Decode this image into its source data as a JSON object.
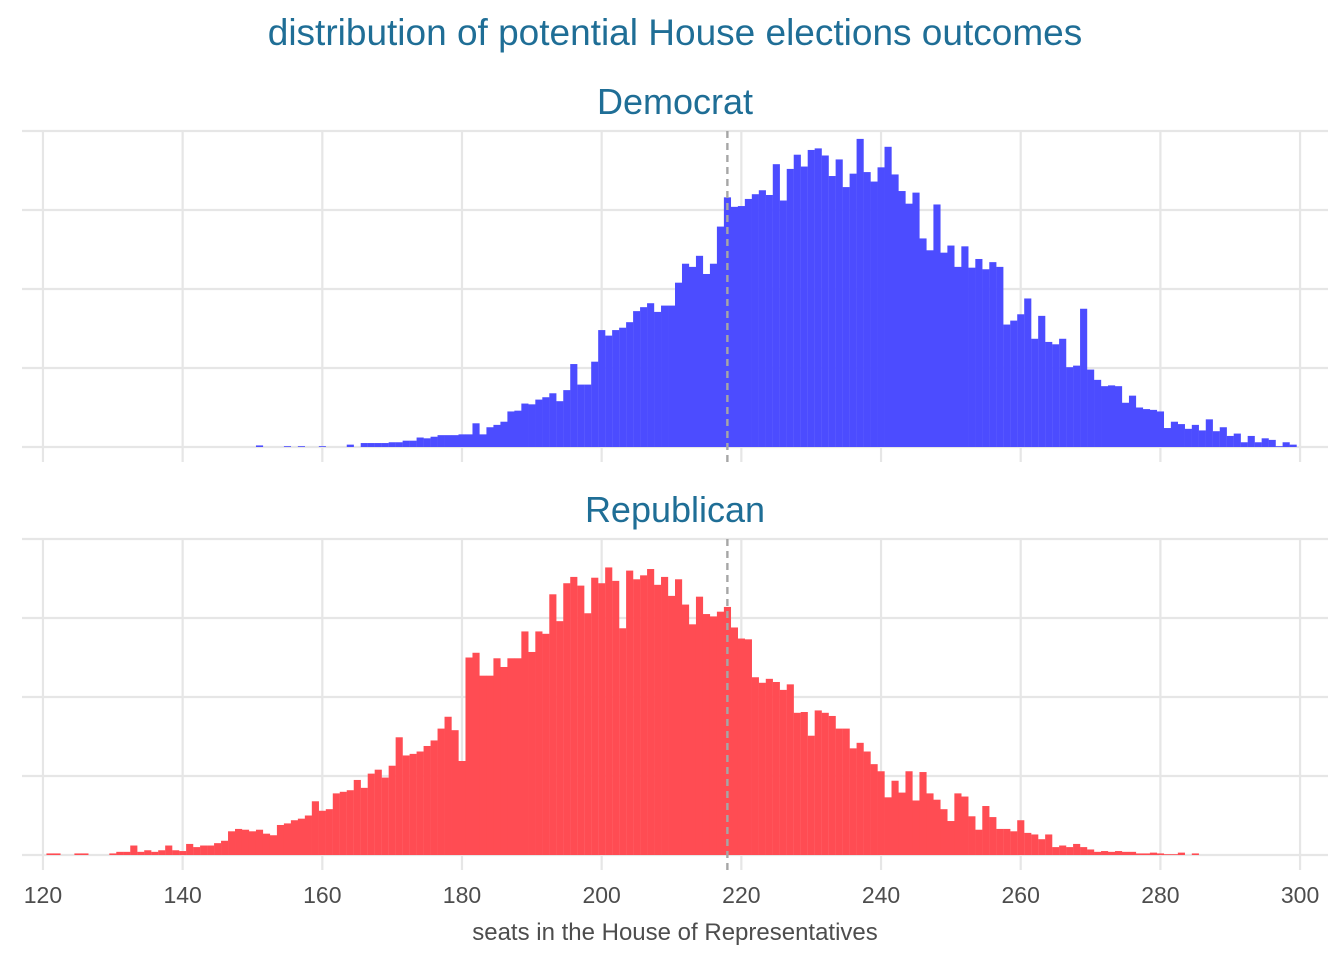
{
  "chart_data": {
    "type": "bar",
    "title": "distribution of potential House elections outcomes",
    "xlabel": "seats in the House of Representatives",
    "ylabel": "",
    "xlim": [
      117,
      304
    ],
    "x_ticks": [
      "120",
      "140",
      "160",
      "180",
      "200",
      "220",
      "240",
      "260",
      "280",
      "300"
    ],
    "reference_line": {
      "x": 218,
      "style": "dashed",
      "color": "#a6a6a6"
    },
    "y_ticks_shown": false,
    "grid": true,
    "legend": "none",
    "panels": [
      {
        "name": "Democrat",
        "color": "#4c4cff",
        "ylim": [
          0,
          4
        ],
        "values": {
          "151": 0.02,
          "155": 0.01,
          "157": 0.01,
          "160": 0.01,
          "164": 0.03,
          "166": 0.05,
          "167": 0.05,
          "168": 0.05,
          "169": 0.05,
          "170": 0.06,
          "171": 0.06,
          "172": 0.08,
          "173": 0.08,
          "174": 0.12,
          "175": 0.11,
          "176": 0.13,
          "177": 0.15,
          "178": 0.15,
          "179": 0.15,
          "180": 0.16,
          "181": 0.16,
          "182": 0.3,
          "183": 0.16,
          "184": 0.25,
          "185": 0.28,
          "186": 0.32,
          "187": 0.45,
          "188": 0.46,
          "189": 0.55,
          "190": 0.54,
          "191": 0.6,
          "192": 0.63,
          "193": 0.68,
          "194": 0.58,
          "195": 0.72,
          "196": 1.05,
          "197": 0.79,
          "198": 0.79,
          "199": 1.08,
          "200": 1.48,
          "201": 1.41,
          "202": 1.48,
          "203": 1.51,
          "204": 1.58,
          "205": 1.72,
          "206": 1.77,
          "207": 1.82,
          "208": 1.71,
          "209": 1.79,
          "210": 1.79,
          "211": 2.08,
          "212": 2.32,
          "213": 2.28,
          "214": 2.42,
          "215": 2.19,
          "216": 2.32,
          "217": 2.79,
          "218": 3.16,
          "219": 3.04,
          "220": 3.05,
          "221": 3.14,
          "222": 3.2,
          "223": 3.25,
          "224": 3.19,
          "225": 3.58,
          "226": 3.12,
          "227": 3.52,
          "228": 3.7,
          "229": 3.55,
          "230": 3.76,
          "231": 3.78,
          "232": 3.69,
          "233": 3.43,
          "234": 3.64,
          "235": 3.29,
          "236": 3.46,
          "237": 3.9,
          "238": 3.48,
          "239": 3.36,
          "240": 3.54,
          "241": 3.8,
          "242": 3.45,
          "243": 3.24,
          "244": 3.08,
          "245": 3.22,
          "246": 2.64,
          "247": 2.49,
          "248": 3.07,
          "249": 2.46,
          "250": 2.55,
          "251": 2.28,
          "252": 2.54,
          "253": 2.27,
          "254": 2.38,
          "255": 2.25,
          "256": 2.34,
          "257": 2.28,
          "258": 1.55,
          "259": 1.6,
          "260": 1.68,
          "261": 1.88,
          "262": 1.37,
          "263": 1.66,
          "264": 1.33,
          "265": 1.3,
          "266": 1.37,
          "267": 1.01,
          "268": 1.03,
          "269": 1.75,
          "270": 0.98,
          "271": 0.85,
          "272": 0.77,
          "273": 0.78,
          "274": 0.77,
          "275": 0.56,
          "276": 0.65,
          "277": 0.5,
          "278": 0.48,
          "279": 0.47,
          "280": 0.45,
          "281": 0.24,
          "282": 0.32,
          "283": 0.29,
          "284": 0.23,
          "285": 0.28,
          "286": 0.21,
          "287": 0.35,
          "288": 0.2,
          "289": 0.25,
          "290": 0.14,
          "291": 0.17,
          "292": 0.06,
          "293": 0.14,
          "294": 0.06,
          "295": 0.11,
          "296": 0.09,
          "297": 0.01,
          "298": 0.06,
          "299": 0.03
        }
      },
      {
        "name": "Republican",
        "color": "#ff4c53",
        "ylim": [
          0,
          4
        ],
        "values": {
          "121": 0.02,
          "122": 0.02,
          "125": 0.02,
          "126": 0.02,
          "130": 0.02,
          "131": 0.04,
          "132": 0.04,
          "133": 0.12,
          "134": 0.04,
          "135": 0.06,
          "136": 0.04,
          "137": 0.06,
          "138": 0.12,
          "139": 0.06,
          "140": 0.05,
          "141": 0.14,
          "142": 0.1,
          "143": 0.12,
          "144": 0.12,
          "145": 0.15,
          "146": 0.18,
          "147": 0.3,
          "148": 0.33,
          "149": 0.32,
          "150": 0.3,
          "151": 0.32,
          "152": 0.27,
          "153": 0.25,
          "154": 0.38,
          "155": 0.4,
          "156": 0.44,
          "157": 0.46,
          "158": 0.5,
          "159": 0.68,
          "160": 0.56,
          "161": 0.58,
          "162": 0.78,
          "163": 0.8,
          "164": 0.82,
          "165": 0.95,
          "166": 0.85,
          "167": 1.03,
          "168": 1.08,
          "169": 0.98,
          "170": 1.13,
          "171": 1.49,
          "172": 1.26,
          "173": 1.28,
          "174": 1.31,
          "175": 1.38,
          "176": 1.45,
          "177": 1.6,
          "178": 1.75,
          "179": 1.58,
          "180": 1.19,
          "181": 2.5,
          "182": 2.56,
          "183": 2.27,
          "184": 2.27,
          "185": 2.49,
          "186": 2.38,
          "187": 2.49,
          "188": 2.49,
          "189": 2.83,
          "190": 2.57,
          "191": 2.83,
          "192": 2.8,
          "193": 3.3,
          "194": 2.96,
          "195": 3.44,
          "196": 3.52,
          "197": 3.41,
          "198": 3.06,
          "199": 3.51,
          "200": 3.44,
          "201": 3.64,
          "202": 3.47,
          "203": 2.87,
          "204": 3.6,
          "205": 3.49,
          "206": 3.54,
          "207": 3.62,
          "208": 3.42,
          "209": 3.52,
          "210": 3.28,
          "211": 3.49,
          "212": 3.17,
          "213": 2.92,
          "214": 3.27,
          "215": 3.05,
          "216": 3.02,
          "217": 3.08,
          "218": 3.14,
          "219": 2.88,
          "220": 2.74,
          "221": 2.73,
          "222": 2.25,
          "223": 2.18,
          "224": 2.23,
          "225": 2.19,
          "226": 2.09,
          "227": 2.16,
          "228": 1.8,
          "229": 1.81,
          "230": 1.51,
          "231": 1.83,
          "232": 1.8,
          "233": 1.76,
          "234": 1.6,
          "235": 1.6,
          "236": 1.35,
          "237": 1.42,
          "238": 1.31,
          "239": 1.15,
          "240": 1.06,
          "241": 0.73,
          "242": 0.94,
          "243": 0.79,
          "244": 1.06,
          "245": 0.69,
          "246": 1.05,
          "247": 0.78,
          "248": 0.7,
          "249": 0.58,
          "250": 0.43,
          "251": 0.78,
          "252": 0.74,
          "253": 0.49,
          "254": 0.32,
          "255": 0.62,
          "256": 0.48,
          "257": 0.33,
          "258": 0.33,
          "259": 0.3,
          "260": 0.44,
          "261": 0.28,
          "262": 0.26,
          "263": 0.2,
          "264": 0.26,
          "265": 0.1,
          "266": 0.12,
          "267": 0.1,
          "268": 0.14,
          "269": 0.1,
          "270": 0.07,
          "271": 0.04,
          "272": 0.05,
          "273": 0.04,
          "274": 0.05,
          "275": 0.04,
          "276": 0.04,
          "277": 0.02,
          "278": 0.02,
          "279": 0.03,
          "280": 0.02,
          "281": 0.01,
          "282": 0.01,
          "283": 0.03,
          "285": 0.02
        }
      }
    ]
  }
}
